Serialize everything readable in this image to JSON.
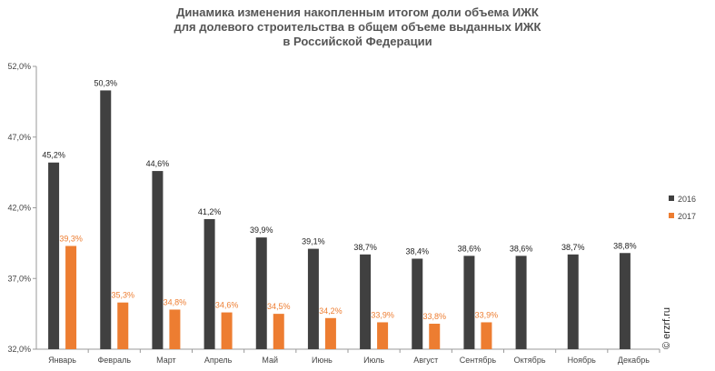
{
  "title_lines": [
    "Динамика изменения накопленным итогом доли объема ИЖК",
    "для долевого строительства  в общем объеме выданных ИЖК",
    "в Российской  Федерации"
  ],
  "watermark": "© erzrf.ru",
  "colors": {
    "2016": "#404040",
    "2017": "#ed7d31"
  },
  "chart_data": {
    "type": "bar",
    "title": "Динамика изменения накопленным итогом доли объема ИЖК для долевого строительства  в общем объеме выданных ИЖК в Российской  Федерации",
    "categories": [
      "Январь",
      "Февраль",
      "Март",
      "Апрель",
      "Май",
      "Июнь",
      "Июль",
      "Август",
      "Сентябрь",
      "Октябрь",
      "Ноябрь",
      "Декабрь"
    ],
    "series": [
      {
        "name": "2016",
        "values": [
          45.2,
          50.3,
          44.6,
          41.2,
          39.9,
          39.1,
          38.7,
          38.4,
          38.6,
          38.6,
          38.7,
          38.8
        ],
        "labels": [
          "45,2%",
          "50,3%",
          "44,6%",
          "41,2%",
          "39,9%",
          "39,1%",
          "38,7%",
          "38,4%",
          "38,6%",
          "38,6%",
          "38,7%",
          "38,8%"
        ]
      },
      {
        "name": "2017",
        "values": [
          39.3,
          35.3,
          34.8,
          34.6,
          34.5,
          34.2,
          33.9,
          33.8,
          33.9,
          null,
          null,
          null
        ],
        "labels": [
          "39,3%",
          "35,3%",
          "34,8%",
          "34,6%",
          "34,5%",
          "34,2%",
          "33,9%",
          "33,8%",
          "33,9%",
          "",
          "",
          ""
        ]
      }
    ],
    "yticks": [
      "32,0%",
      "37,0%",
      "42,0%",
      "47,0%",
      "52,0%"
    ],
    "ytick_values": [
      32,
      37,
      42,
      47,
      52
    ],
    "ylim": [
      32,
      52
    ],
    "grid": false,
    "legend_position": "right"
  }
}
